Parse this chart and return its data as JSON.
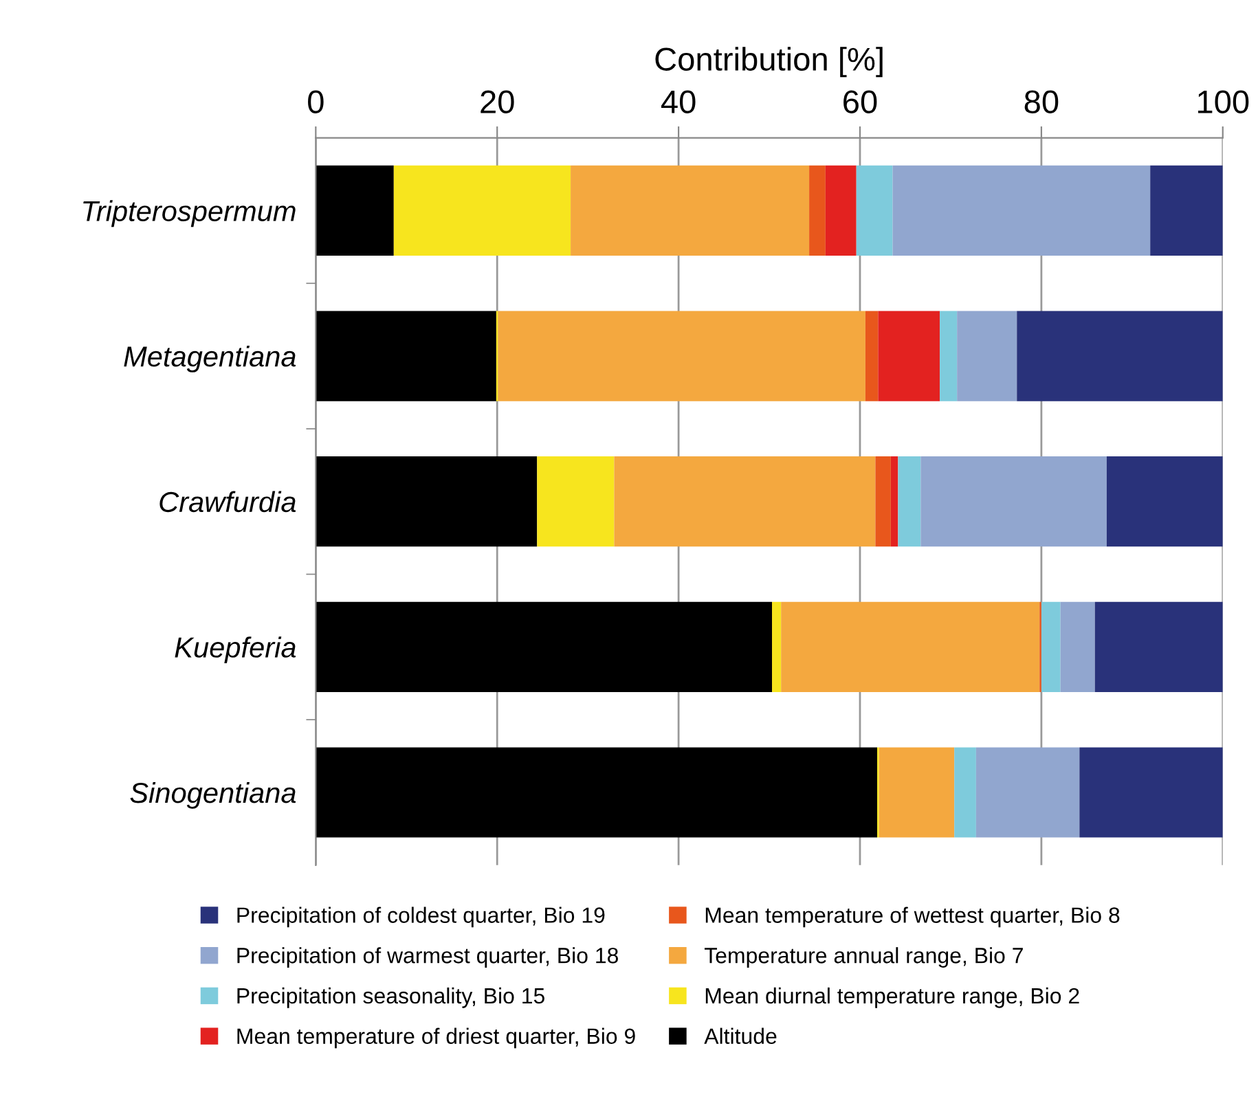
{
  "chart_data": {
    "type": "bar",
    "orientation": "horizontal",
    "stacked": true,
    "xlabel": "Contribution [%]",
    "categories": [
      "Tripterospermum",
      "Metagentiana",
      "Crawfurdia",
      "Kuepferia",
      "Sinogentiana"
    ],
    "series": [
      {
        "name": "Altitude",
        "color": "#000000",
        "values": [
          8.6,
          19.9,
          24.4,
          50.3,
          61.9
        ]
      },
      {
        "name": "Mean diurnal temperature range, Bio 2",
        "color": "#f7e51e",
        "values": [
          19.5,
          0.2,
          8.5,
          1.0,
          0.2
        ]
      },
      {
        "name": "Temperature annual range, Bio 7",
        "color": "#f4a83f",
        "values": [
          26.3,
          40.5,
          28.8,
          28.5,
          8.3
        ]
      },
      {
        "name": "Mean temperature of wettest quarter, Bio 8",
        "color": "#e8571c",
        "values": [
          1.8,
          1.4,
          1.7,
          0.2,
          0
        ]
      },
      {
        "name": "Mean temperature of driest quarter, Bio 9",
        "color": "#e32220",
        "values": [
          3.4,
          6.8,
          0.8,
          0,
          0
        ]
      },
      {
        "name": "Precipitation seasonality, Bio 15",
        "color": "#7ecbdc",
        "values": [
          4.0,
          1.9,
          2.5,
          2.1,
          2.4
        ]
      },
      {
        "name": "Precipitation of warmest quarter, Bio 18",
        "color": "#91a6cf",
        "values": [
          28.4,
          6.6,
          20.5,
          3.8,
          11.4
        ]
      },
      {
        "name": "Precipitation of coldest quarter, Bio 19",
        "color": "#29327a",
        "values": [
          8.0,
          22.7,
          12.8,
          14.1,
          15.8
        ]
      }
    ],
    "xlim": [
      0,
      100
    ],
    "xticks": [
      0,
      20,
      40,
      60,
      80,
      100
    ],
    "grid": "x",
    "legend": "bottom"
  }
}
